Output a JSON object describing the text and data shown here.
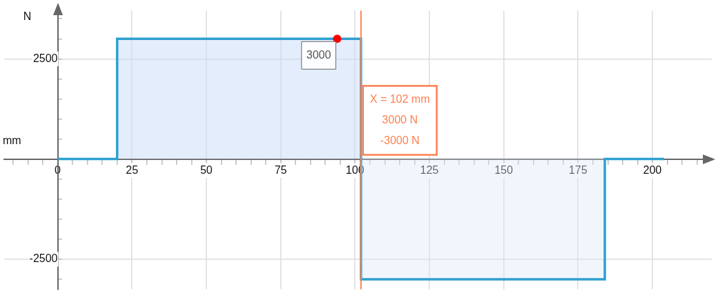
{
  "chart_data": {
    "type": "step",
    "xlabel": "mm",
    "ylabel": "N",
    "x": [
      0,
      20,
      102,
      184,
      204
    ],
    "series": [
      {
        "color": "#2e9fd0",
        "values": [
          0,
          3000,
          -3000,
          0,
          0
        ]
      },
      {
        "type": "scatter",
        "color": "#ff0000",
        "x": [
          94
        ],
        "values": [
          3000
        ]
      }
    ],
    "xlim": [
      -18,
      220
    ],
    "ylim": [
      -3250,
      3700
    ],
    "xticks": [
      {
        "value": -15,
        "label": null
      },
      {
        "value": -10,
        "label": null
      },
      {
        "value": -5,
        "label": null
      },
      0,
      {
        "value": 5,
        "label": null
      },
      {
        "value": 10,
        "label": null
      },
      {
        "value": 15,
        "label": null
      },
      {
        "value": 20,
        "label": null
      },
      25,
      {
        "value": 30,
        "label": null
      },
      {
        "value": 35,
        "label": null
      },
      {
        "value": 40,
        "label": null
      },
      {
        "value": 45,
        "label": null
      },
      50,
      {
        "value": 55,
        "label": null
      },
      {
        "value": 60,
        "label": null
      },
      {
        "value": 65,
        "label": null
      },
      {
        "value": 70,
        "label": null
      },
      75,
      {
        "value": 80,
        "label": null
      },
      {
        "value": 85,
        "label": null
      },
      {
        "value": 90,
        "label": null
      },
      {
        "value": 95,
        "label": null
      },
      100,
      {
        "value": 105,
        "label": null
      },
      {
        "value": 110,
        "label": null
      },
      {
        "value": 115,
        "label": null
      },
      {
        "value": 120,
        "label": null
      },
      125,
      {
        "value": 130,
        "label": null
      },
      {
        "value": 135,
        "label": null
      },
      {
        "value": 140,
        "label": null
      },
      {
        "value": 145,
        "label": null
      },
      150,
      {
        "value": 155,
        "label": null
      },
      {
        "value": 160,
        "label": null
      },
      {
        "value": 165,
        "label": null
      },
      {
        "value": 170,
        "label": null
      },
      175,
      {
        "value": 180,
        "label": null
      },
      {
        "value": 185,
        "label": null
      },
      {
        "value": 190,
        "label": null
      },
      {
        "value": 195,
        "label": null
      },
      200,
      {
        "value": 205,
        "label": null
      },
      {
        "value": 210,
        "label": null
      },
      {
        "value": 215,
        "label": null
      }
    ],
    "yticks": [
      {
        "value": -3000,
        "label": null
      },
      -2500,
      {
        "value": -2000,
        "label": null
      },
      {
        "value": -1500,
        "label": null
      },
      {
        "value": -1000,
        "label": null
      },
      {
        "value": -500,
        "label": null
      },
      {
        "value": 0,
        "label": null
      },
      {
        "value": 500,
        "label": null
      },
      {
        "value": 1000,
        "label": null
      },
      {
        "value": 1500,
        "label": null
      },
      {
        "value": 2000,
        "label": null
      },
      2500,
      {
        "value": 3000,
        "label": null
      },
      {
        "value": 3500,
        "label": null
      }
    ],
    "grid": true,
    "legend": false,
    "ref_lines": [
      {
        "axis": "x",
        "value": 102,
        "label": "X = 102 mm",
        "color": "#ff7f50"
      }
    ],
    "annotations": [
      {
        "text": "3000",
        "x": 94,
        "y": 3000
      },
      "3000 N",
      "-3000 N"
    ]
  }
}
